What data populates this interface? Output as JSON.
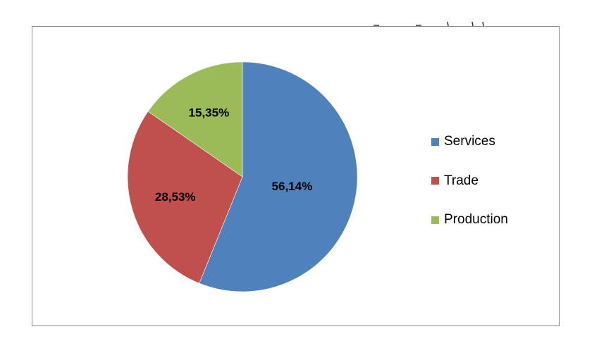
{
  "chart_data": {
    "type": "pie",
    "title": "",
    "categories": [
      "Services",
      "Trade",
      "Production"
    ],
    "values": [
      56.14,
      28.53,
      15.35
    ],
    "value_labels": [
      "56,14%",
      "28,53%",
      "15,35%"
    ],
    "colors": [
      "#4f81bd",
      "#c0504d",
      "#9bbb59"
    ],
    "start_angle_deg": 0,
    "direction": "clockwise",
    "legend": {
      "placement": "right",
      "entries": [
        "Services",
        "Trade",
        "Production"
      ]
    }
  }
}
